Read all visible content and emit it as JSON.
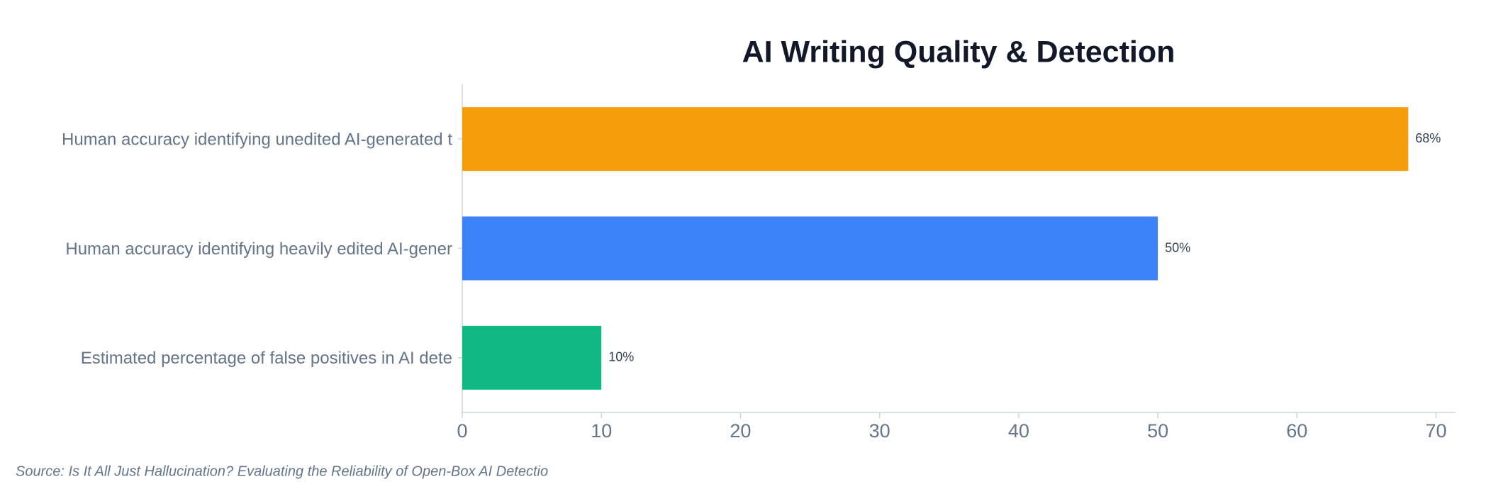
{
  "chart_data": {
    "type": "bar",
    "orientation": "horizontal",
    "title": "AI Writing Quality & Detection",
    "categories": [
      "Human accuracy identifying unedited AI-generated t",
      "Human accuracy identifying heavily edited AI-gener",
      "Estimated percentage of false positives in AI dete"
    ],
    "values": [
      68,
      50,
      10
    ],
    "value_labels": [
      "68%",
      "50%",
      "10%"
    ],
    "colors": [
      "#f59e0b",
      "#3b82f6",
      "#10b981"
    ],
    "xlim": [
      0,
      71.4
    ],
    "xticks": [
      0,
      10,
      20,
      30,
      40,
      50,
      60,
      70
    ],
    "source": "Source: Is It All Just Hallucination? Evaluating the Reliability of Open-Box AI Detectio"
  }
}
